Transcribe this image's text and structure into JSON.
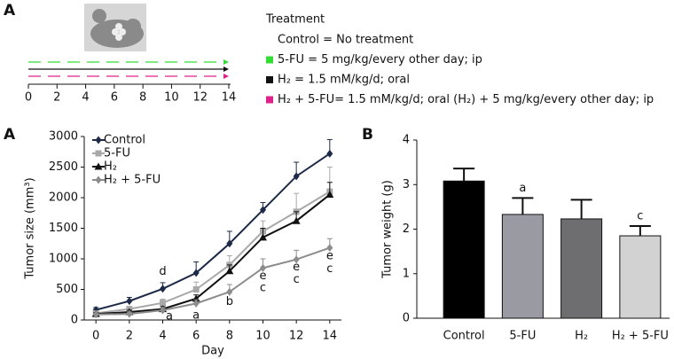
{
  "panel_labels": [
    "A",
    "A",
    "B"
  ],
  "schematic": {
    "ticks": [
      0,
      2,
      4,
      6,
      8,
      10,
      12,
      14
    ],
    "legend_title": "Treatment",
    "items": [
      {
        "text": "Control = No treatment",
        "color": null
      },
      {
        "text": "5-FU = 5 mg/kg/every other day; ip",
        "color": "#33dd33"
      },
      {
        "text": "H₂ = 1.5 mM/kg/d; oral",
        "color": "#111111"
      },
      {
        "text": "H₂ + 5-FU= 1.5 mM/kg/d; oral (H₂) + 5 mg/kg/every other day; ip",
        "color": "#e0208a"
      }
    ]
  },
  "chart_data": [
    {
      "type": "line",
      "y_label": "Tumor size (mm³)",
      "x_label": "Day",
      "x": [
        0,
        2,
        4,
        6,
        8,
        10,
        12,
        14
      ],
      "xlim": [
        -0.7,
        14.7
      ],
      "xticks": [
        0,
        2,
        4,
        6,
        8,
        10,
        12,
        14
      ],
      "ylim": [
        0,
        3000
      ],
      "yticks": [
        0,
        500,
        1000,
        1500,
        2000,
        2500,
        3000
      ],
      "series": [
        {
          "name": "Control",
          "color": "#1c2a48",
          "marker": "diamond",
          "values": [
            165,
            310,
            510,
            770,
            1250,
            1800,
            2350,
            2720
          ],
          "errors": [
            40,
            60,
            100,
            180,
            200,
            120,
            230,
            230
          ]
        },
        {
          "name": "5-FU",
          "color": "#a8a8a8",
          "marker": "square",
          "values": [
            110,
            180,
            280,
            500,
            900,
            1450,
            1770,
            2100
          ],
          "errors": [
            30,
            40,
            60,
            120,
            150,
            170,
            300,
            400
          ]
        },
        {
          "name": "H₂",
          "color": "#111111",
          "marker": "triangle",
          "values": [
            100,
            130,
            180,
            350,
            800,
            1350,
            1620,
            2050
          ],
          "errors": [
            20,
            30,
            40,
            60,
            100,
            150,
            150,
            200
          ]
        },
        {
          "name": "H₂ + 5-FU",
          "color": "#8c8c8c",
          "marker": "diamond",
          "values": [
            90,
            100,
            160,
            270,
            460,
            850,
            990,
            1180
          ],
          "errors": [
            20,
            30,
            40,
            60,
            120,
            150,
            150,
            150
          ]
        }
      ],
      "annotations": [
        {
          "text": "d",
          "x": 4,
          "y": 790
        },
        {
          "text": "a",
          "x": 4.4,
          "y": 60
        },
        {
          "text": "a",
          "x": 6,
          "y": 70
        },
        {
          "text": "b",
          "x": 8,
          "y": 300
        },
        {
          "text": "e",
          "x": 10,
          "y": 720
        },
        {
          "text": "c",
          "x": 10,
          "y": 520
        },
        {
          "text": "e",
          "x": 12,
          "y": 860
        },
        {
          "text": "c",
          "x": 12,
          "y": 660
        },
        {
          "text": "e",
          "x": 14,
          "y": 1040
        },
        {
          "text": "c",
          "x": 14,
          "y": 830
        }
      ]
    },
    {
      "type": "bar",
      "y_label": "Tumor weight (g)",
      "categories": [
        "Control",
        "5-FU",
        "H₂",
        "H₂ + 5-FU"
      ],
      "values": [
        3.08,
        2.33,
        2.23,
        1.85
      ],
      "errors": [
        0.28,
        0.37,
        0.43,
        0.22
      ],
      "colors": [
        "#000000",
        "#9a9aa2",
        "#6e6e70",
        "#d2d2d2"
      ],
      "letters": [
        null,
        "a",
        null,
        "c"
      ],
      "ylim": [
        0,
        4
      ],
      "yticks": [
        0,
        1,
        2,
        3,
        4
      ]
    }
  ]
}
